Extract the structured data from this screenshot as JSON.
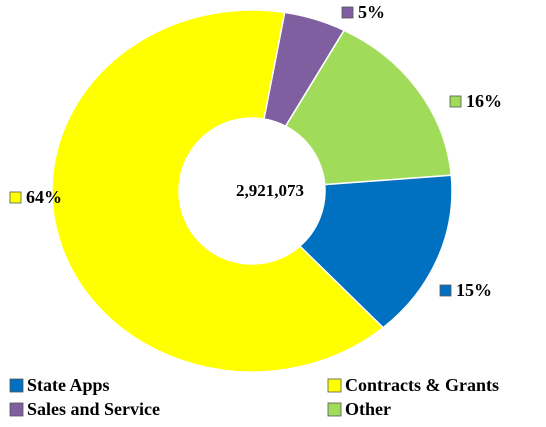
{
  "chart_data": {
    "type": "donut",
    "center_label": "2,921,073",
    "categories": [
      "State Apps",
      "Contracts & Grants",
      "Sales and Service",
      "Other"
    ],
    "values": [
      15,
      64,
      5,
      16
    ],
    "value_labels": [
      "15%",
      "64%",
      "5%",
      "16%"
    ],
    "colors": [
      "#0070c0",
      "#ffff00",
      "#7f5f9f",
      "#a0dc5a"
    ],
    "legend": "bottom"
  }
}
